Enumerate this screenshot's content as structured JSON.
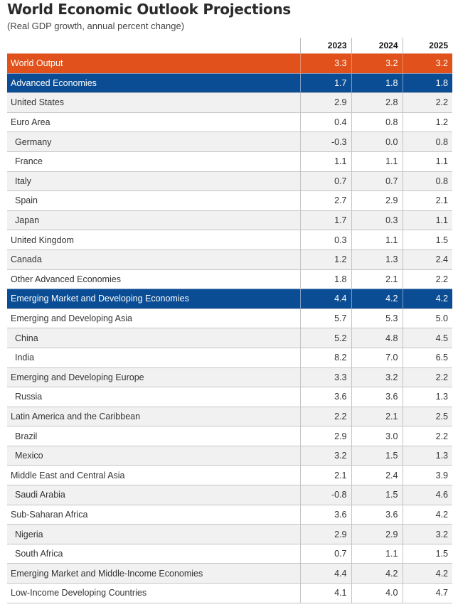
{
  "title": "World Economic Outlook Projections",
  "subtitle": "(Real GDP growth, annual percent change)",
  "colors": {
    "world": "#e0511b",
    "group": "#0a4d94",
    "stripe": "#f1f1f1"
  },
  "chart_data": {
    "type": "table",
    "columns": [
      "2023",
      "2024",
      "2025"
    ],
    "rows": [
      {
        "label": "World Output",
        "values": [
          "3.3",
          "3.2",
          "3.2"
        ],
        "style": "world"
      },
      {
        "label": "Advanced Economies",
        "values": [
          "1.7",
          "1.8",
          "1.8"
        ],
        "style": "group"
      },
      {
        "label": "United States",
        "values": [
          "2.9",
          "2.8",
          "2.2"
        ]
      },
      {
        "label": "Euro Area",
        "values": [
          "0.4",
          "0.8",
          "1.2"
        ]
      },
      {
        "label": "Germany",
        "values": [
          "-0.3",
          "0.0",
          "0.8"
        ],
        "indent": true
      },
      {
        "label": "France",
        "values": [
          "1.1",
          "1.1",
          "1.1"
        ],
        "indent": true
      },
      {
        "label": "Italy",
        "values": [
          "0.7",
          "0.7",
          "0.8"
        ],
        "indent": true
      },
      {
        "label": "Spain",
        "values": [
          "2.7",
          "2.9",
          "2.1"
        ],
        "indent": true
      },
      {
        "label": "Japan",
        "values": [
          "1.7",
          "0.3",
          "1.1"
        ],
        "indent": true
      },
      {
        "label": "United Kingdom",
        "values": [
          "0.3",
          "1.1",
          "1.5"
        ]
      },
      {
        "label": "Canada",
        "values": [
          "1.2",
          "1.3",
          "2.4"
        ]
      },
      {
        "label": "Other Advanced Economies",
        "values": [
          "1.8",
          "2.1",
          "2.2"
        ]
      },
      {
        "label": "Emerging Market and Developing Economies",
        "values": [
          "4.4",
          "4.2",
          "4.2"
        ],
        "style": "group"
      },
      {
        "label": "Emerging and Developing Asia",
        "values": [
          "5.7",
          "5.3",
          "5.0"
        ]
      },
      {
        "label": "China",
        "values": [
          "5.2",
          "4.8",
          "4.5"
        ],
        "indent": true
      },
      {
        "label": "India",
        "values": [
          "8.2",
          "7.0",
          "6.5"
        ],
        "indent": true
      },
      {
        "label": "Emerging and Developing Europe",
        "values": [
          "3.3",
          "3.2",
          "2.2"
        ]
      },
      {
        "label": "Russia",
        "values": [
          "3.6",
          "3.6",
          "1.3"
        ],
        "indent": true
      },
      {
        "label": "Latin America and the Caribbean",
        "values": [
          "2.2",
          "2.1",
          "2.5"
        ]
      },
      {
        "label": "Brazil",
        "values": [
          "2.9",
          "3.0",
          "2.2"
        ],
        "indent": true
      },
      {
        "label": "Mexico",
        "values": [
          "3.2",
          "1.5",
          "1.3"
        ],
        "indent": true
      },
      {
        "label": "Middle East and Central Asia",
        "values": [
          "2.1",
          "2.4",
          "3.9"
        ]
      },
      {
        "label": "Saudi Arabia",
        "values": [
          "-0.8",
          "1.5",
          "4.6"
        ],
        "indent": true
      },
      {
        "label": "Sub-Saharan Africa",
        "values": [
          "3.6",
          "3.6",
          "4.2"
        ]
      },
      {
        "label": "Nigeria",
        "values": [
          "2.9",
          "2.9",
          "3.2"
        ],
        "indent": true
      },
      {
        "label": "South Africa",
        "values": [
          "0.7",
          "1.1",
          "1.5"
        ],
        "indent": true
      },
      {
        "label": "Emerging Market and Middle-Income Economies",
        "values": [
          "4.4",
          "4.2",
          "4.2"
        ]
      },
      {
        "label": "Low-Income Developing Countries",
        "values": [
          "4.1",
          "4.0",
          "4.7"
        ]
      }
    ]
  }
}
